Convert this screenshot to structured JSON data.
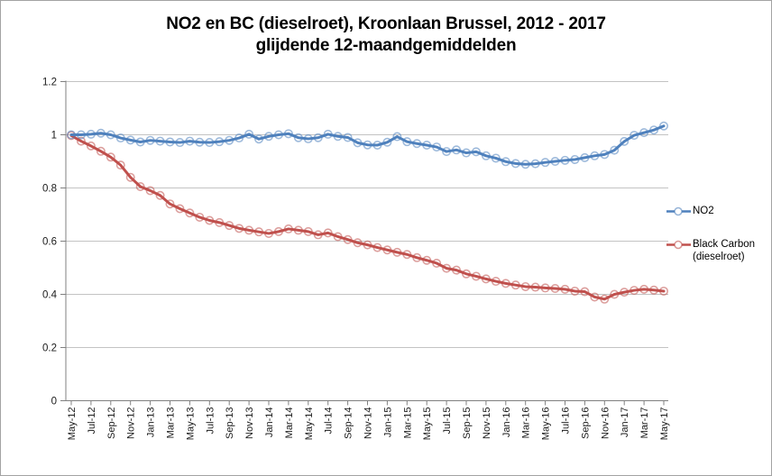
{
  "chart_data": {
    "type": "line",
    "title_line1": "NO2 en BC (dieselroet), Kroonlaan Brussel, 2012 - 2017",
    "title_line2": "glijdende 12-maandgemiddelden",
    "xlabel": "",
    "ylabel": "",
    "ylim": [
      0,
      1.2
    ],
    "y_ticks": [
      0,
      0.2,
      0.4,
      0.6,
      0.8,
      1,
      1.2
    ],
    "y_tick_labels": [
      "0",
      "0.2",
      "0.4",
      "0.6",
      "0.8",
      "1",
      "1.2"
    ],
    "x_tick_every": 2,
    "grid": true,
    "legend_position": "right",
    "x": [
      "May-12",
      "Jun-12",
      "Jul-12",
      "Aug-12",
      "Sep-12",
      "Oct-12",
      "Nov-12",
      "Dec-12",
      "Jan-13",
      "Feb-13",
      "Mar-13",
      "Apr-13",
      "May-13",
      "Jun-13",
      "Jul-13",
      "Aug-13",
      "Sep-13",
      "Oct-13",
      "Nov-13",
      "Dec-13",
      "Jan-14",
      "Feb-14",
      "Mar-14",
      "Apr-14",
      "May-14",
      "Jun-14",
      "Jul-14",
      "Aug-14",
      "Sep-14",
      "Oct-14",
      "Nov-14",
      "Dec-14",
      "Jan-15",
      "Feb-15",
      "Mar-15",
      "Apr-15",
      "May-15",
      "Jun-15",
      "Jul-15",
      "Aug-15",
      "Sep-15",
      "Oct-15",
      "Nov-15",
      "Dec-15",
      "Jan-16",
      "Feb-16",
      "Mar-16",
      "Apr-16",
      "May-16",
      "Jun-16",
      "Jul-16",
      "Aug-16",
      "Sep-16",
      "Oct-16",
      "Nov-16",
      "Dec-16",
      "Jan-17",
      "Feb-17",
      "Mar-17",
      "Apr-17",
      "May-17"
    ],
    "series": [
      {
        "name": "NO2",
        "legend_label": "NO2",
        "color": "#4F81BD",
        "values": [
          1.0,
          1.0,
          1.002,
          1.006,
          1.0,
          0.988,
          0.98,
          0.973,
          0.979,
          0.976,
          0.973,
          0.971,
          0.976,
          0.972,
          0.971,
          0.974,
          0.979,
          0.988,
          1.002,
          0.984,
          0.994,
          1.0,
          1.004,
          0.989,
          0.985,
          0.989,
          1.002,
          0.994,
          0.99,
          0.97,
          0.962,
          0.961,
          0.972,
          0.993,
          0.974,
          0.967,
          0.961,
          0.954,
          0.937,
          0.943,
          0.932,
          0.936,
          0.921,
          0.912,
          0.899,
          0.892,
          0.889,
          0.891,
          0.896,
          0.9,
          0.904,
          0.907,
          0.914,
          0.921,
          0.926,
          0.942,
          0.975,
          0.998,
          1.008,
          1.018,
          1.033
        ]
      },
      {
        "name": "Black Carbon (dieselroet)",
        "legend_label": "Black Carbon\n(dieselroet)",
        "color": "#C0504D",
        "values": [
          0.997,
          0.976,
          0.958,
          0.938,
          0.916,
          0.886,
          0.84,
          0.805,
          0.79,
          0.772,
          0.74,
          0.722,
          0.706,
          0.69,
          0.678,
          0.67,
          0.659,
          0.648,
          0.641,
          0.635,
          0.629,
          0.636,
          0.646,
          0.641,
          0.636,
          0.624,
          0.631,
          0.617,
          0.606,
          0.594,
          0.586,
          0.576,
          0.567,
          0.558,
          0.55,
          0.538,
          0.528,
          0.517,
          0.498,
          0.491,
          0.477,
          0.468,
          0.458,
          0.449,
          0.441,
          0.435,
          0.429,
          0.427,
          0.424,
          0.422,
          0.419,
          0.412,
          0.41,
          0.39,
          0.382,
          0.4,
          0.408,
          0.415,
          0.419,
          0.416,
          0.412
        ]
      }
    ]
  },
  "colors": {
    "background": "#FFFFFF",
    "border": "#A3A3A3",
    "gridline": "#C3C3C3",
    "axis": "#808080",
    "tick_text": "#1A1A1A",
    "title_text": "#000000"
  }
}
